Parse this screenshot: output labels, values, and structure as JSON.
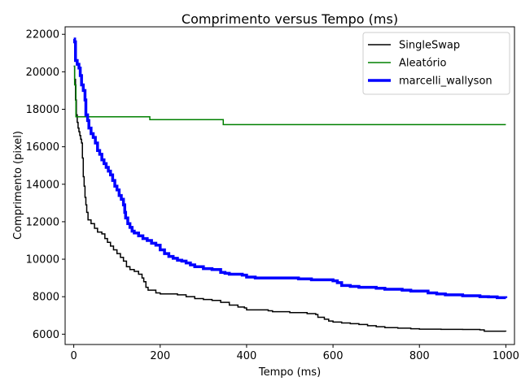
{
  "chart_data": {
    "type": "line",
    "title": "Comprimento versus Tempo (ms)",
    "xlabel": "Tempo (ms)",
    "ylabel": "Comprimento (pixel)",
    "xlim": [
      -20,
      1020
    ],
    "ylim": [
      5450,
      22400
    ],
    "x_ticks": [
      0,
      200,
      400,
      600,
      800,
      1000
    ],
    "y_ticks": [
      6000,
      8000,
      10000,
      12000,
      14000,
      16000,
      18000,
      20000,
      22000
    ],
    "grid": false,
    "legend_position": "top-right",
    "series": [
      {
        "name": "SingleSwap",
        "color": "#000000",
        "points": [
          [
            0,
            20300
          ],
          [
            2,
            19600
          ],
          [
            4,
            18500
          ],
          [
            6,
            17700
          ],
          [
            8,
            17300
          ],
          [
            10,
            17000
          ],
          [
            12,
            16800
          ],
          [
            14,
            16600
          ],
          [
            16,
            16400
          ],
          [
            18,
            16200
          ],
          [
            20,
            15400
          ],
          [
            22,
            14400
          ],
          [
            24,
            13900
          ],
          [
            26,
            13300
          ],
          [
            28,
            12900
          ],
          [
            30,
            12500
          ],
          [
            33,
            12100
          ],
          [
            40,
            11900
          ],
          [
            48,
            11650
          ],
          [
            55,
            11450
          ],
          [
            65,
            11350
          ],
          [
            72,
            11100
          ],
          [
            78,
            10900
          ],
          [
            85,
            10700
          ],
          [
            92,
            10500
          ],
          [
            100,
            10300
          ],
          [
            108,
            10100
          ],
          [
            115,
            9900
          ],
          [
            122,
            9600
          ],
          [
            130,
            9450
          ],
          [
            140,
            9350
          ],
          [
            150,
            9200
          ],
          [
            158,
            9000
          ],
          [
            162,
            8800
          ],
          [
            167,
            8500
          ],
          [
            172,
            8350
          ],
          [
            190,
            8200
          ],
          [
            200,
            8150
          ],
          [
            240,
            8100
          ],
          [
            260,
            8000
          ],
          [
            280,
            7900
          ],
          [
            300,
            7850
          ],
          [
            320,
            7800
          ],
          [
            340,
            7700
          ],
          [
            360,
            7550
          ],
          [
            380,
            7450
          ],
          [
            395,
            7400
          ],
          [
            400,
            7300
          ],
          [
            450,
            7250
          ],
          [
            460,
            7200
          ],
          [
            500,
            7150
          ],
          [
            530,
            7150
          ],
          [
            540,
            7100
          ],
          [
            560,
            7050
          ],
          [
            565,
            6900
          ],
          [
            580,
            6800
          ],
          [
            590,
            6700
          ],
          [
            600,
            6650
          ],
          [
            620,
            6600
          ],
          [
            640,
            6560
          ],
          [
            660,
            6520
          ],
          [
            680,
            6450
          ],
          [
            700,
            6400
          ],
          [
            720,
            6350
          ],
          [
            750,
            6320
          ],
          [
            780,
            6290
          ],
          [
            800,
            6270
          ],
          [
            850,
            6260
          ],
          [
            900,
            6250
          ],
          [
            940,
            6230
          ],
          [
            950,
            6160
          ],
          [
            1000,
            6150
          ]
        ]
      },
      {
        "name": "Aleatório",
        "color": "#008000",
        "points": [
          [
            0,
            20300
          ],
          [
            2,
            19300
          ],
          [
            5,
            17600
          ],
          [
            175,
            17600
          ],
          [
            176,
            17450
          ],
          [
            345,
            17450
          ],
          [
            346,
            17180
          ],
          [
            1000,
            17180
          ]
        ]
      },
      {
        "name": "marcelli_wallyson",
        "color": "#0000ff",
        "points": [
          [
            0,
            21750
          ],
          [
            2,
            21600
          ],
          [
            4,
            20600
          ],
          [
            8,
            20400
          ],
          [
            12,
            20200
          ],
          [
            15,
            19800
          ],
          [
            18,
            19300
          ],
          [
            22,
            19000
          ],
          [
            26,
            18500
          ],
          [
            28,
            17700
          ],
          [
            32,
            17400
          ],
          [
            35,
            17000
          ],
          [
            40,
            16700
          ],
          [
            45,
            16500
          ],
          [
            50,
            16200
          ],
          [
            55,
            15800
          ],
          [
            60,
            15600
          ],
          [
            65,
            15300
          ],
          [
            70,
            15100
          ],
          [
            75,
            14900
          ],
          [
            80,
            14700
          ],
          [
            85,
            14500
          ],
          [
            90,
            14200
          ],
          [
            95,
            13900
          ],
          [
            100,
            13700
          ],
          [
            105,
            13400
          ],
          [
            110,
            13200
          ],
          [
            115,
            12900
          ],
          [
            118,
            12500
          ],
          [
            120,
            12200
          ],
          [
            125,
            11900
          ],
          [
            130,
            11700
          ],
          [
            135,
            11500
          ],
          [
            140,
            11400
          ],
          [
            150,
            11250
          ],
          [
            160,
            11100
          ],
          [
            170,
            11000
          ],
          [
            180,
            10850
          ],
          [
            190,
            10750
          ],
          [
            200,
            10500
          ],
          [
            210,
            10300
          ],
          [
            220,
            10150
          ],
          [
            230,
            10050
          ],
          [
            240,
            9950
          ],
          [
            250,
            9900
          ],
          [
            260,
            9800
          ],
          [
            270,
            9700
          ],
          [
            280,
            9600
          ],
          [
            300,
            9500
          ],
          [
            320,
            9450
          ],
          [
            340,
            9300
          ],
          [
            350,
            9250
          ],
          [
            360,
            9200
          ],
          [
            390,
            9150
          ],
          [
            400,
            9050
          ],
          [
            420,
            9000
          ],
          [
            500,
            9000
          ],
          [
            520,
            8950
          ],
          [
            550,
            8900
          ],
          [
            600,
            8850
          ],
          [
            610,
            8750
          ],
          [
            620,
            8600
          ],
          [
            640,
            8550
          ],
          [
            660,
            8500
          ],
          [
            680,
            8500
          ],
          [
            700,
            8450
          ],
          [
            720,
            8400
          ],
          [
            760,
            8350
          ],
          [
            780,
            8300
          ],
          [
            800,
            8300
          ],
          [
            820,
            8200
          ],
          [
            840,
            8150
          ],
          [
            860,
            8100
          ],
          [
            900,
            8050
          ],
          [
            940,
            8000
          ],
          [
            960,
            7990
          ],
          [
            980,
            7950
          ],
          [
            1000,
            7930
          ]
        ]
      }
    ]
  }
}
